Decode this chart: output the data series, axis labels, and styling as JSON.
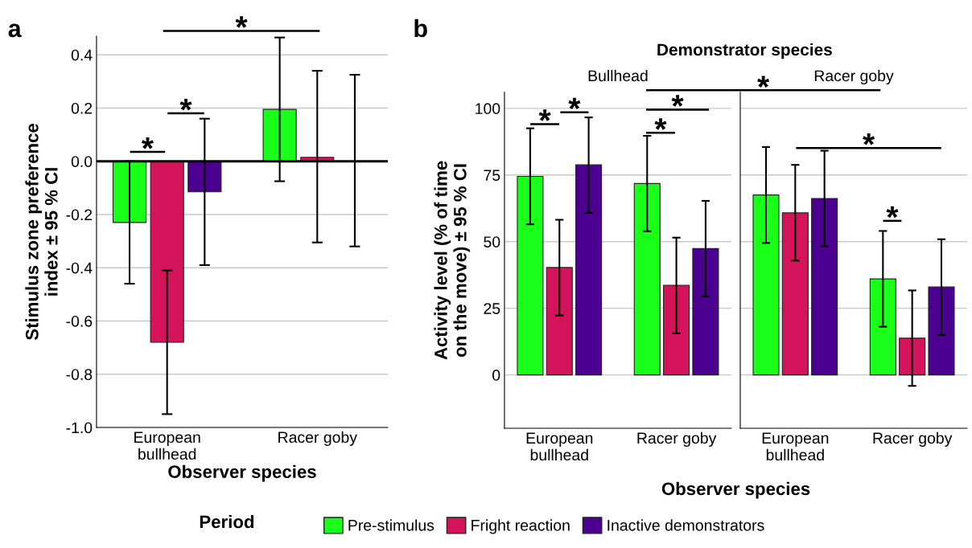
{
  "chart_data": [
    {
      "type": "bar",
      "categories": [
        "European\nbullhead",
        "Racer goby"
      ],
      "xlabel": "Observer species",
      "ylabel": "Stimulus zone preference\nindex ± 95 % CI",
      "series": [
        {
          "name": "Pre-stimulus",
          "color": "#1aff1a",
          "values": [
            -0.23,
            0.195
          ],
          "errors": [
            [
              -0.46,
              0.0
            ],
            [
              -0.075,
              0.465
            ]
          ]
        },
        {
          "name": "Fright reaction",
          "color": "#d4145a",
          "values": [
            -0.68,
            0.015
          ],
          "errors": [
            [
              -0.95,
              -0.41
            ],
            [
              -0.305,
              0.34
            ]
          ]
        },
        {
          "name": "Inactive demonstrators",
          "color": "#4b0090",
          "values": [
            -0.115,
            0.0
          ],
          "errors": [
            [
              -0.39,
              0.16
            ],
            [
              -0.32,
              0.325
            ]
          ]
        }
      ],
      "ylim": [
        -1.0,
        0.47
      ],
      "yticks": [
        {
          "value": -1.0,
          "label": "-1.0"
        },
        {
          "value": -0.8,
          "label": "-0.8"
        },
        {
          "value": -0.6,
          "label": "-0.6"
        },
        {
          "value": -0.4,
          "label": "-0.4"
        },
        {
          "value": -0.2,
          "label": "-0.2"
        },
        {
          "value": 0.0,
          "label": "0.0"
        },
        {
          "value": 0.2,
          "label": "0.2"
        },
        {
          "value": 0.4,
          "label": "0.4"
        }
      ],
      "ref_lines": [
        {
          "axis": "y",
          "value": 0,
          "color": "#000000"
        }
      ],
      "grid": "y",
      "legend": "bottom",
      "legend_title": "Period",
      "annotations": [
        "a",
        "*",
        "*",
        "*"
      ]
    },
    {
      "type": "bar",
      "title": "Bullhead",
      "categories": [
        "European\nbullhead",
        "Racer goby"
      ],
      "xlabel": "Observer species",
      "ylabel": "Activity level (% of time\non the move) ± 95 % CI",
      "series": [
        {
          "color": "#1aff1a",
          "values": [
            74.5,
            71.8
          ],
          "errors": [
            [
              56.5,
              92.5
            ],
            [
              53.9,
              89.7
            ]
          ]
        },
        {
          "color": "#d4145a",
          "values": [
            40.3,
            33.6
          ],
          "errors": [
            [
              22.3,
              58.2
            ],
            [
              15.6,
              51.5
            ]
          ]
        },
        {
          "color": "#4b0090",
          "values": [
            78.8,
            47.4
          ],
          "errors": [
            [
              60.8,
              96.6
            ],
            [
              29.5,
              65.3
            ]
          ]
        }
      ],
      "ylim": [
        -20,
        106
      ],
      "yticks": [
        0,
        25,
        50,
        75,
        100
      ],
      "grid": "y",
      "annotations": [
        "b",
        "Demonstrator species",
        "*",
        "*",
        "*",
        "*",
        "*"
      ]
    },
    {
      "type": "bar",
      "title": "Racer goby",
      "categories": [
        "European\nbullhead",
        "Racer goby"
      ],
      "series": [
        {
          "color": "#1aff1a",
          "values": [
            67.5,
            36.0
          ],
          "errors": [
            [
              49.5,
              85.5
            ],
            [
              18.1,
              54.0
            ]
          ]
        },
        {
          "color": "#d4145a",
          "values": [
            60.8,
            13.8
          ],
          "errors": [
            [
              42.9,
              78.8
            ],
            [
              -4.1,
              31.7
            ]
          ]
        },
        {
          "color": "#4b0090",
          "values": [
            66.2,
            33.0
          ],
          "errors": [
            [
              48.3,
              84.1
            ],
            [
              15.0,
              50.9
            ]
          ]
        }
      ],
      "ylim": [
        -20,
        106
      ],
      "yticks": [
        0,
        25,
        50,
        75,
        100
      ],
      "grid": "y",
      "tick_labels": "x",
      "annotations": [
        "*",
        "*"
      ]
    }
  ]
}
